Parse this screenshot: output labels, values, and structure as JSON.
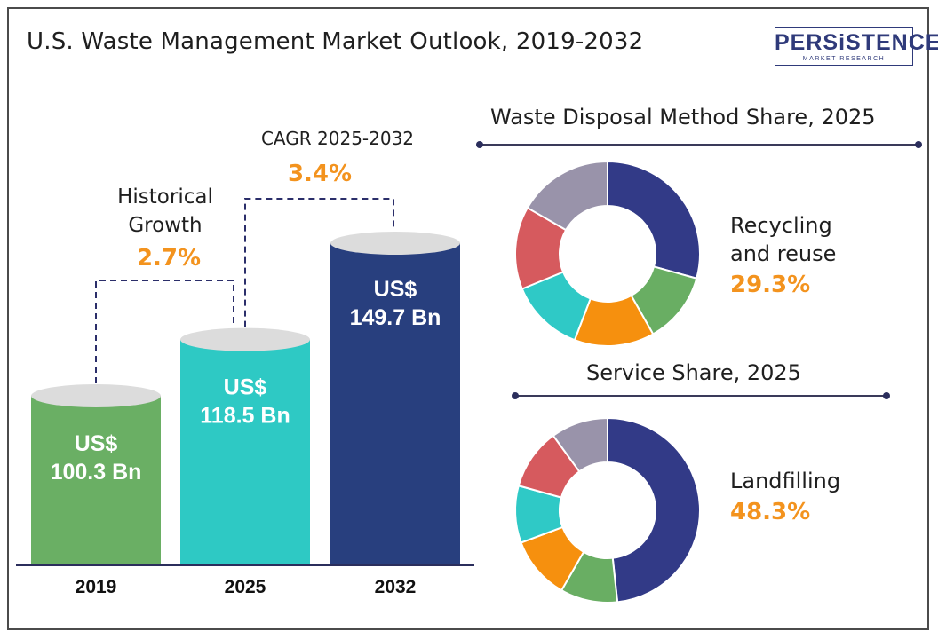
{
  "title": "U.S. Waste Management Market Outlook, 2019-2032",
  "logo": {
    "main": "PERSiSTENCE",
    "sub": "MARKET RESEARCH"
  },
  "chart_data": [
    {
      "type": "bar",
      "categories": [
        "2019",
        "2025",
        "2032"
      ],
      "values": [
        100.3,
        118.5,
        149.7
      ],
      "value_labels": [
        "US$\n100.3 Bn",
        "US$\n118.5 Bn",
        "US$\n149.7 Bn"
      ],
      "colors": [
        "#6aaf64",
        "#2ec9c4",
        "#283f7e"
      ],
      "annotations": [
        {
          "label": "Historical\nGrowth",
          "value": "2.7%"
        },
        {
          "label": "CAGR 2025-2032",
          "value": "3.4%"
        }
      ],
      "accent": "#f3931e"
    },
    {
      "type": "pie",
      "title": "Waste Disposal Method Share, 2025",
      "highlight_label": "Recycling\nand reuse",
      "highlight_value": "29.3%",
      "slices": [
        {
          "value": 29.3,
          "color": "#323a87"
        },
        {
          "value": 12.5,
          "color": "#69ae63"
        },
        {
          "value": 14.0,
          "color": "#f6900e"
        },
        {
          "value": 13.0,
          "color": "#2fc9c6"
        },
        {
          "value": 14.5,
          "color": "#d65a5e"
        },
        {
          "value": 16.7,
          "color": "#9993aa"
        }
      ]
    },
    {
      "type": "pie",
      "title": "Service Share, 2025",
      "highlight_label": "Landfilling",
      "highlight_value": "48.3%",
      "slices": [
        {
          "value": 48.3,
          "color": "#323a87"
        },
        {
          "value": 10.0,
          "color": "#69ae63"
        },
        {
          "value": 11.0,
          "color": "#f6900e"
        },
        {
          "value": 10.0,
          "color": "#2fc9c6"
        },
        {
          "value": 10.7,
          "color": "#d65a5e"
        },
        {
          "value": 10.0,
          "color": "#9993aa"
        }
      ]
    }
  ]
}
